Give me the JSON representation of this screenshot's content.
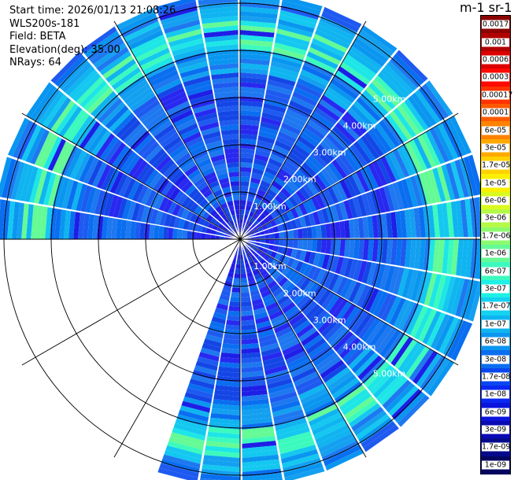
{
  "info": {
    "start_time": "Start time: 2026/01/13 21:08:26",
    "instrument": "WLS200s-181",
    "field": "Field: BETA",
    "elevation": "Elevation(deg): 35.00",
    "nrays": "NRays: 64"
  },
  "colorbar": {
    "title": "m-1 sr-1",
    "ticks": [
      "0.0017",
      "0.001",
      "0.0006",
      "0.0003",
      "0.00017",
      "0.0001",
      "6e-05",
      "3e-05",
      "1.7e-05",
      "1e-05",
      "6e-06",
      "3e-06",
      "1.7e-06",
      "1e-06",
      "6e-07",
      "3e-07",
      "1.7e-07",
      "1e-07",
      "6e-08",
      "3e-08",
      "1.7e-08",
      "1e-08",
      "6e-09",
      "3e-09",
      "1.7e-09",
      "1e-09"
    ],
    "colors": [
      "#8b0000",
      "#b00000",
      "#dc0000",
      "#ff0a00",
      "#ff3300",
      "#ff5a00",
      "#ff8200",
      "#ffaa00",
      "#ffd200",
      "#faf000",
      "#dcfa1e",
      "#b4fa46",
      "#8cfa6e",
      "#64fa96",
      "#3cfabe",
      "#1ef0e6",
      "#14d2f0",
      "#0fb4f0",
      "#0a96f0",
      "#0a6ef0",
      "#0a46f0",
      "#0a28f0",
      "#0a14dc",
      "#0a0ab4",
      "#050a8c",
      "#03055f"
    ]
  },
  "range_labels": [
    "1.00km",
    "2.00km",
    "3.00km",
    "4.00km",
    "5.00km"
  ]
}
